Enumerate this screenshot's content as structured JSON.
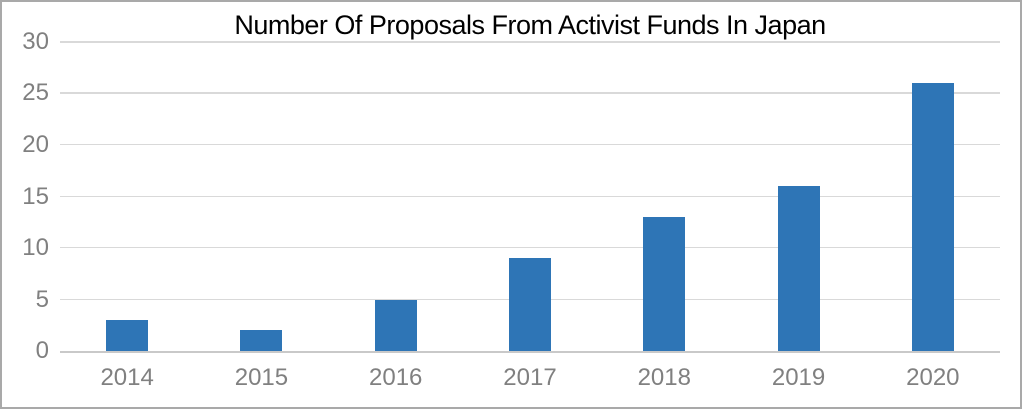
{
  "chart_data": {
    "type": "bar",
    "title": "Number Of Proposals From Activist Funds In Japan",
    "categories": [
      "2014",
      "2015",
      "2016",
      "2017",
      "2018",
      "2019",
      "2020"
    ],
    "values": [
      3,
      2,
      5,
      9,
      13,
      16,
      26
    ],
    "xlabel": "",
    "ylabel": "",
    "ylim": [
      0,
      30
    ],
    "y_ticks": [
      0,
      5,
      10,
      15,
      20,
      25,
      30
    ],
    "grid": true,
    "legend": false,
    "colors": {
      "bar": "#2e75b6",
      "gridline": "#d9d9d9",
      "axis_line": "#c9c9c9",
      "tick_label": "#808080",
      "title": "#000000",
      "background": "#ffffff",
      "frame_border": "#a9a9a9"
    }
  }
}
